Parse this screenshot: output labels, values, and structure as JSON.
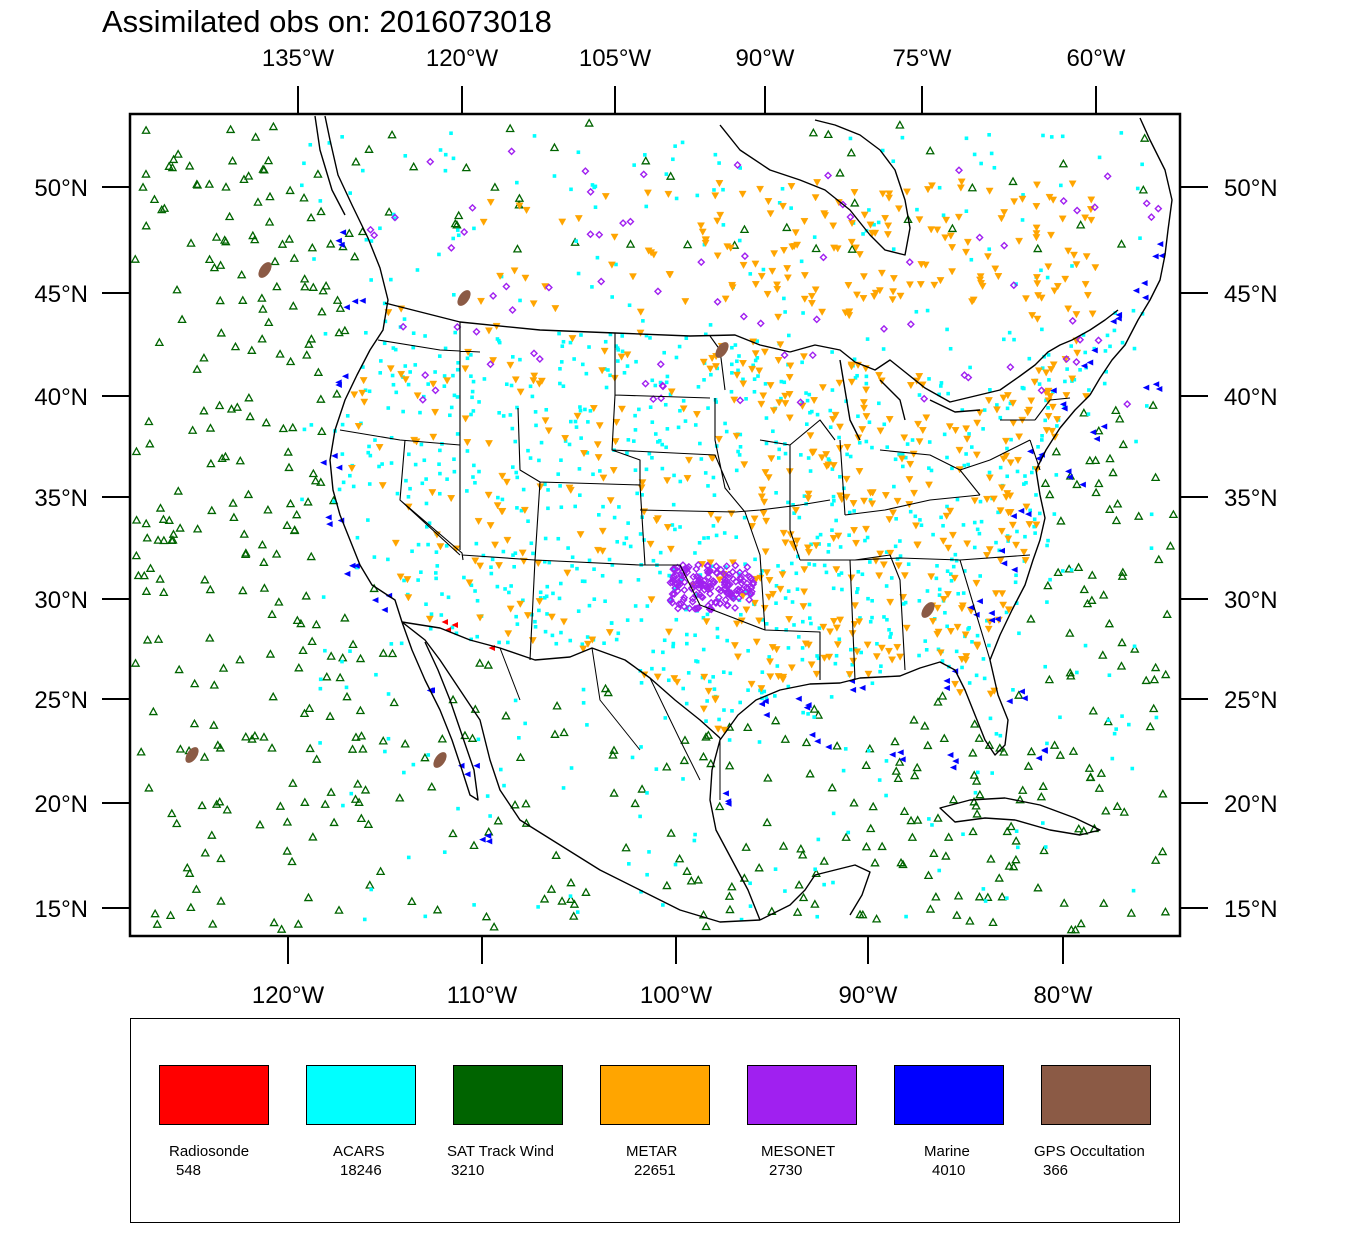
{
  "title": "Assimilated obs on: 2016073018",
  "axes": {
    "top_lon_labels": [
      "135°W",
      "120°W",
      "105°W",
      "90°W",
      "75°W",
      "60°W"
    ],
    "bottom_lon_labels": [
      "120°W",
      "110°W",
      "100°W",
      "90°W",
      "80°W"
    ],
    "lat_labels": [
      "50°N",
      "45°N",
      "40°N",
      "35°N",
      "30°N",
      "25°N",
      "20°N",
      "15°N"
    ]
  },
  "legend": [
    {
      "name": "Radiosonde",
      "count": "548",
      "color": "#ff0000"
    },
    {
      "name": "ACARS",
      "count": "18246",
      "color": "#00ffff"
    },
    {
      "name": "SAT Track Wind",
      "count": "3210",
      "color": "#006400"
    },
    {
      "name": "METAR",
      "count": "22651",
      "color": "#ffa500"
    },
    {
      "name": "MESONET",
      "count": "2730",
      "color": "#a020f0"
    },
    {
      "name": "Marine",
      "count": "4010",
      "color": "#0000ff"
    },
    {
      "name": "GPS Occultation",
      "count": "366",
      "color": "#8b5a45"
    }
  ]
}
